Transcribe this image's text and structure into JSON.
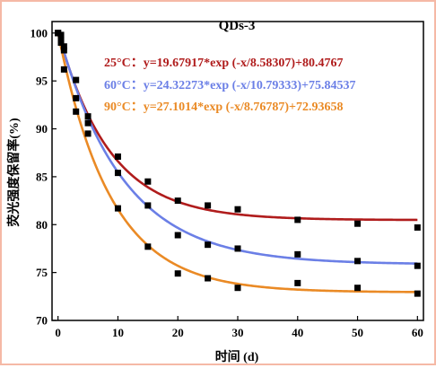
{
  "chart_data": {
    "type": "scatter",
    "title": "QDs-3",
    "xlabel": "时间 (d)",
    "ylabel": "荧光强度保留率(%)",
    "xlim": [
      -1,
      61
    ],
    "ylim": [
      70,
      101.2
    ],
    "x_ticks": [
      0,
      10,
      20,
      30,
      40,
      50,
      60
    ],
    "y_ticks": [
      70,
      75,
      80,
      85,
      90,
      95,
      100
    ],
    "grid": false,
    "legend_position": "top-right",
    "series": [
      {
        "name": "25°C",
        "color": "#b01c1c",
        "equation": "25°C：y=19.67917*exp (-x/8.58307)+80.4767",
        "fit": {
          "A": 19.67917,
          "t": 8.58307,
          "y0": 80.4767
        },
        "points": [
          [
            0,
            100
          ],
          [
            0.5,
            99.8
          ],
          [
            1,
            98.6
          ],
          [
            3,
            95.1
          ],
          [
            5,
            91.3
          ],
          [
            10,
            87.1
          ],
          [
            15,
            84.5
          ],
          [
            20,
            82.5
          ],
          [
            25,
            82.0
          ],
          [
            30,
            81.6
          ],
          [
            40,
            80.5
          ],
          [
            50,
            80.1
          ],
          [
            60,
            79.7
          ]
        ]
      },
      {
        "name": "60°C",
        "color": "#6b7fe6",
        "equation": "60°C：y=24.32273*exp (-x/10.79333)+75.84537",
        "fit": {
          "A": 24.32273,
          "t": 10.79333,
          "y0": 75.84537
        },
        "points": [
          [
            0,
            100
          ],
          [
            0.5,
            99.3
          ],
          [
            1,
            98.2
          ],
          [
            3,
            93.2
          ],
          [
            5,
            90.6
          ],
          [
            10,
            85.4
          ],
          [
            15,
            82.0
          ],
          [
            20,
            78.9
          ],
          [
            25,
            77.9
          ],
          [
            30,
            77.5
          ],
          [
            40,
            76.9
          ],
          [
            50,
            76.2
          ],
          [
            60,
            75.7
          ]
        ]
      },
      {
        "name": "90°C",
        "color": "#ea8a25",
        "equation": "90°C：y=27.1014*exp (-x/8.76787)+72.93658",
        "fit": {
          "A": 27.1014,
          "t": 8.76787,
          "y0": 72.93658
        },
        "points": [
          [
            0,
            100
          ],
          [
            0.5,
            99.0
          ],
          [
            1,
            96.2
          ],
          [
            3,
            91.8
          ],
          [
            5,
            89.5
          ],
          [
            10,
            81.7
          ],
          [
            15,
            77.7
          ],
          [
            20,
            74.9
          ],
          [
            25,
            74.4
          ],
          [
            30,
            73.4
          ],
          [
            40,
            73.9
          ],
          [
            50,
            73.4
          ],
          [
            60,
            72.8
          ]
        ]
      }
    ]
  }
}
